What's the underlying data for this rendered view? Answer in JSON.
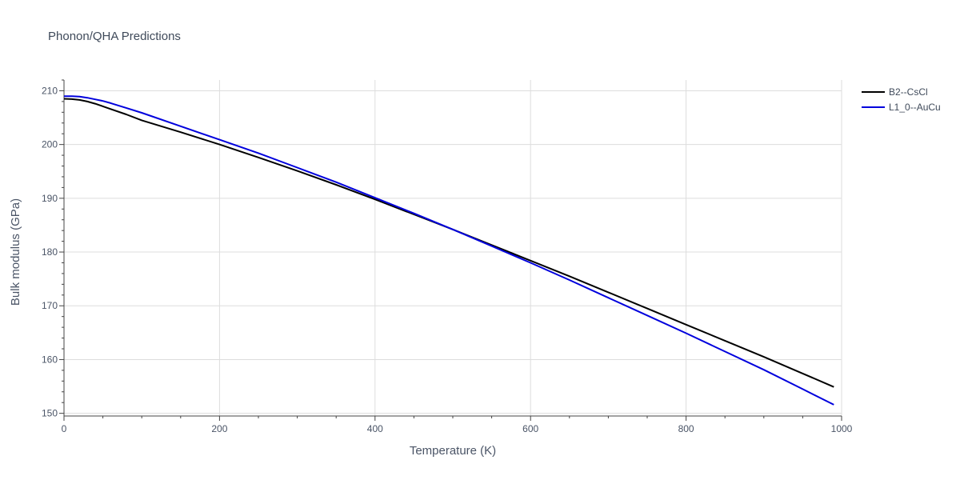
{
  "chart_data": {
    "type": "line",
    "title": "Phonon/QHA Predictions",
    "xlabel": "Temperature (K)",
    "ylabel": "Bulk modulus (GPa)",
    "xlim": [
      0,
      1000
    ],
    "ylim": [
      149.5,
      212
    ],
    "xticks": [
      0,
      200,
      400,
      600,
      800,
      1000
    ],
    "xtick_labels": [
      "0",
      "200",
      "400",
      "600",
      "800",
      "1000"
    ],
    "yticks": [
      150,
      160,
      170,
      180,
      190,
      200,
      210
    ],
    "ytick_labels": [
      "150",
      "160",
      "170",
      "180",
      "190",
      "200",
      "210"
    ],
    "x_minor_step": 50,
    "y_minor_step": 2,
    "grid": true,
    "legend_position": "top-right",
    "series": [
      {
        "name": "B2--CsCl",
        "color": "#000000",
        "x": [
          0,
          10,
          20,
          30,
          40,
          50,
          60,
          80,
          100,
          150,
          200,
          250,
          300,
          350,
          400,
          450,
          500,
          550,
          600,
          650,
          700,
          750,
          800,
          850,
          900,
          950,
          990
        ],
        "y": [
          208.5,
          208.45,
          208.3,
          208.0,
          207.6,
          207.1,
          206.6,
          205.6,
          204.5,
          202.3,
          200.0,
          197.6,
          195.1,
          192.5,
          189.8,
          187.0,
          184.2,
          181.3,
          178.4,
          175.5,
          172.5,
          169.5,
          166.5,
          163.5,
          160.5,
          157.4,
          154.9
        ]
      },
      {
        "name": "L1_0--AuCu",
        "color": "#0000dd",
        "x": [
          0,
          10,
          20,
          30,
          40,
          50,
          60,
          80,
          100,
          150,
          200,
          250,
          300,
          350,
          400,
          450,
          500,
          550,
          600,
          650,
          700,
          750,
          800,
          850,
          900,
          950,
          990
        ],
        "y": [
          209.0,
          209.0,
          208.9,
          208.7,
          208.4,
          208.1,
          207.7,
          206.8,
          205.9,
          203.4,
          200.9,
          198.4,
          195.7,
          193.0,
          190.1,
          187.2,
          184.2,
          181.1,
          178.0,
          174.8,
          171.5,
          168.2,
          164.9,
          161.5,
          158.1,
          154.5,
          151.6
        ]
      }
    ]
  }
}
